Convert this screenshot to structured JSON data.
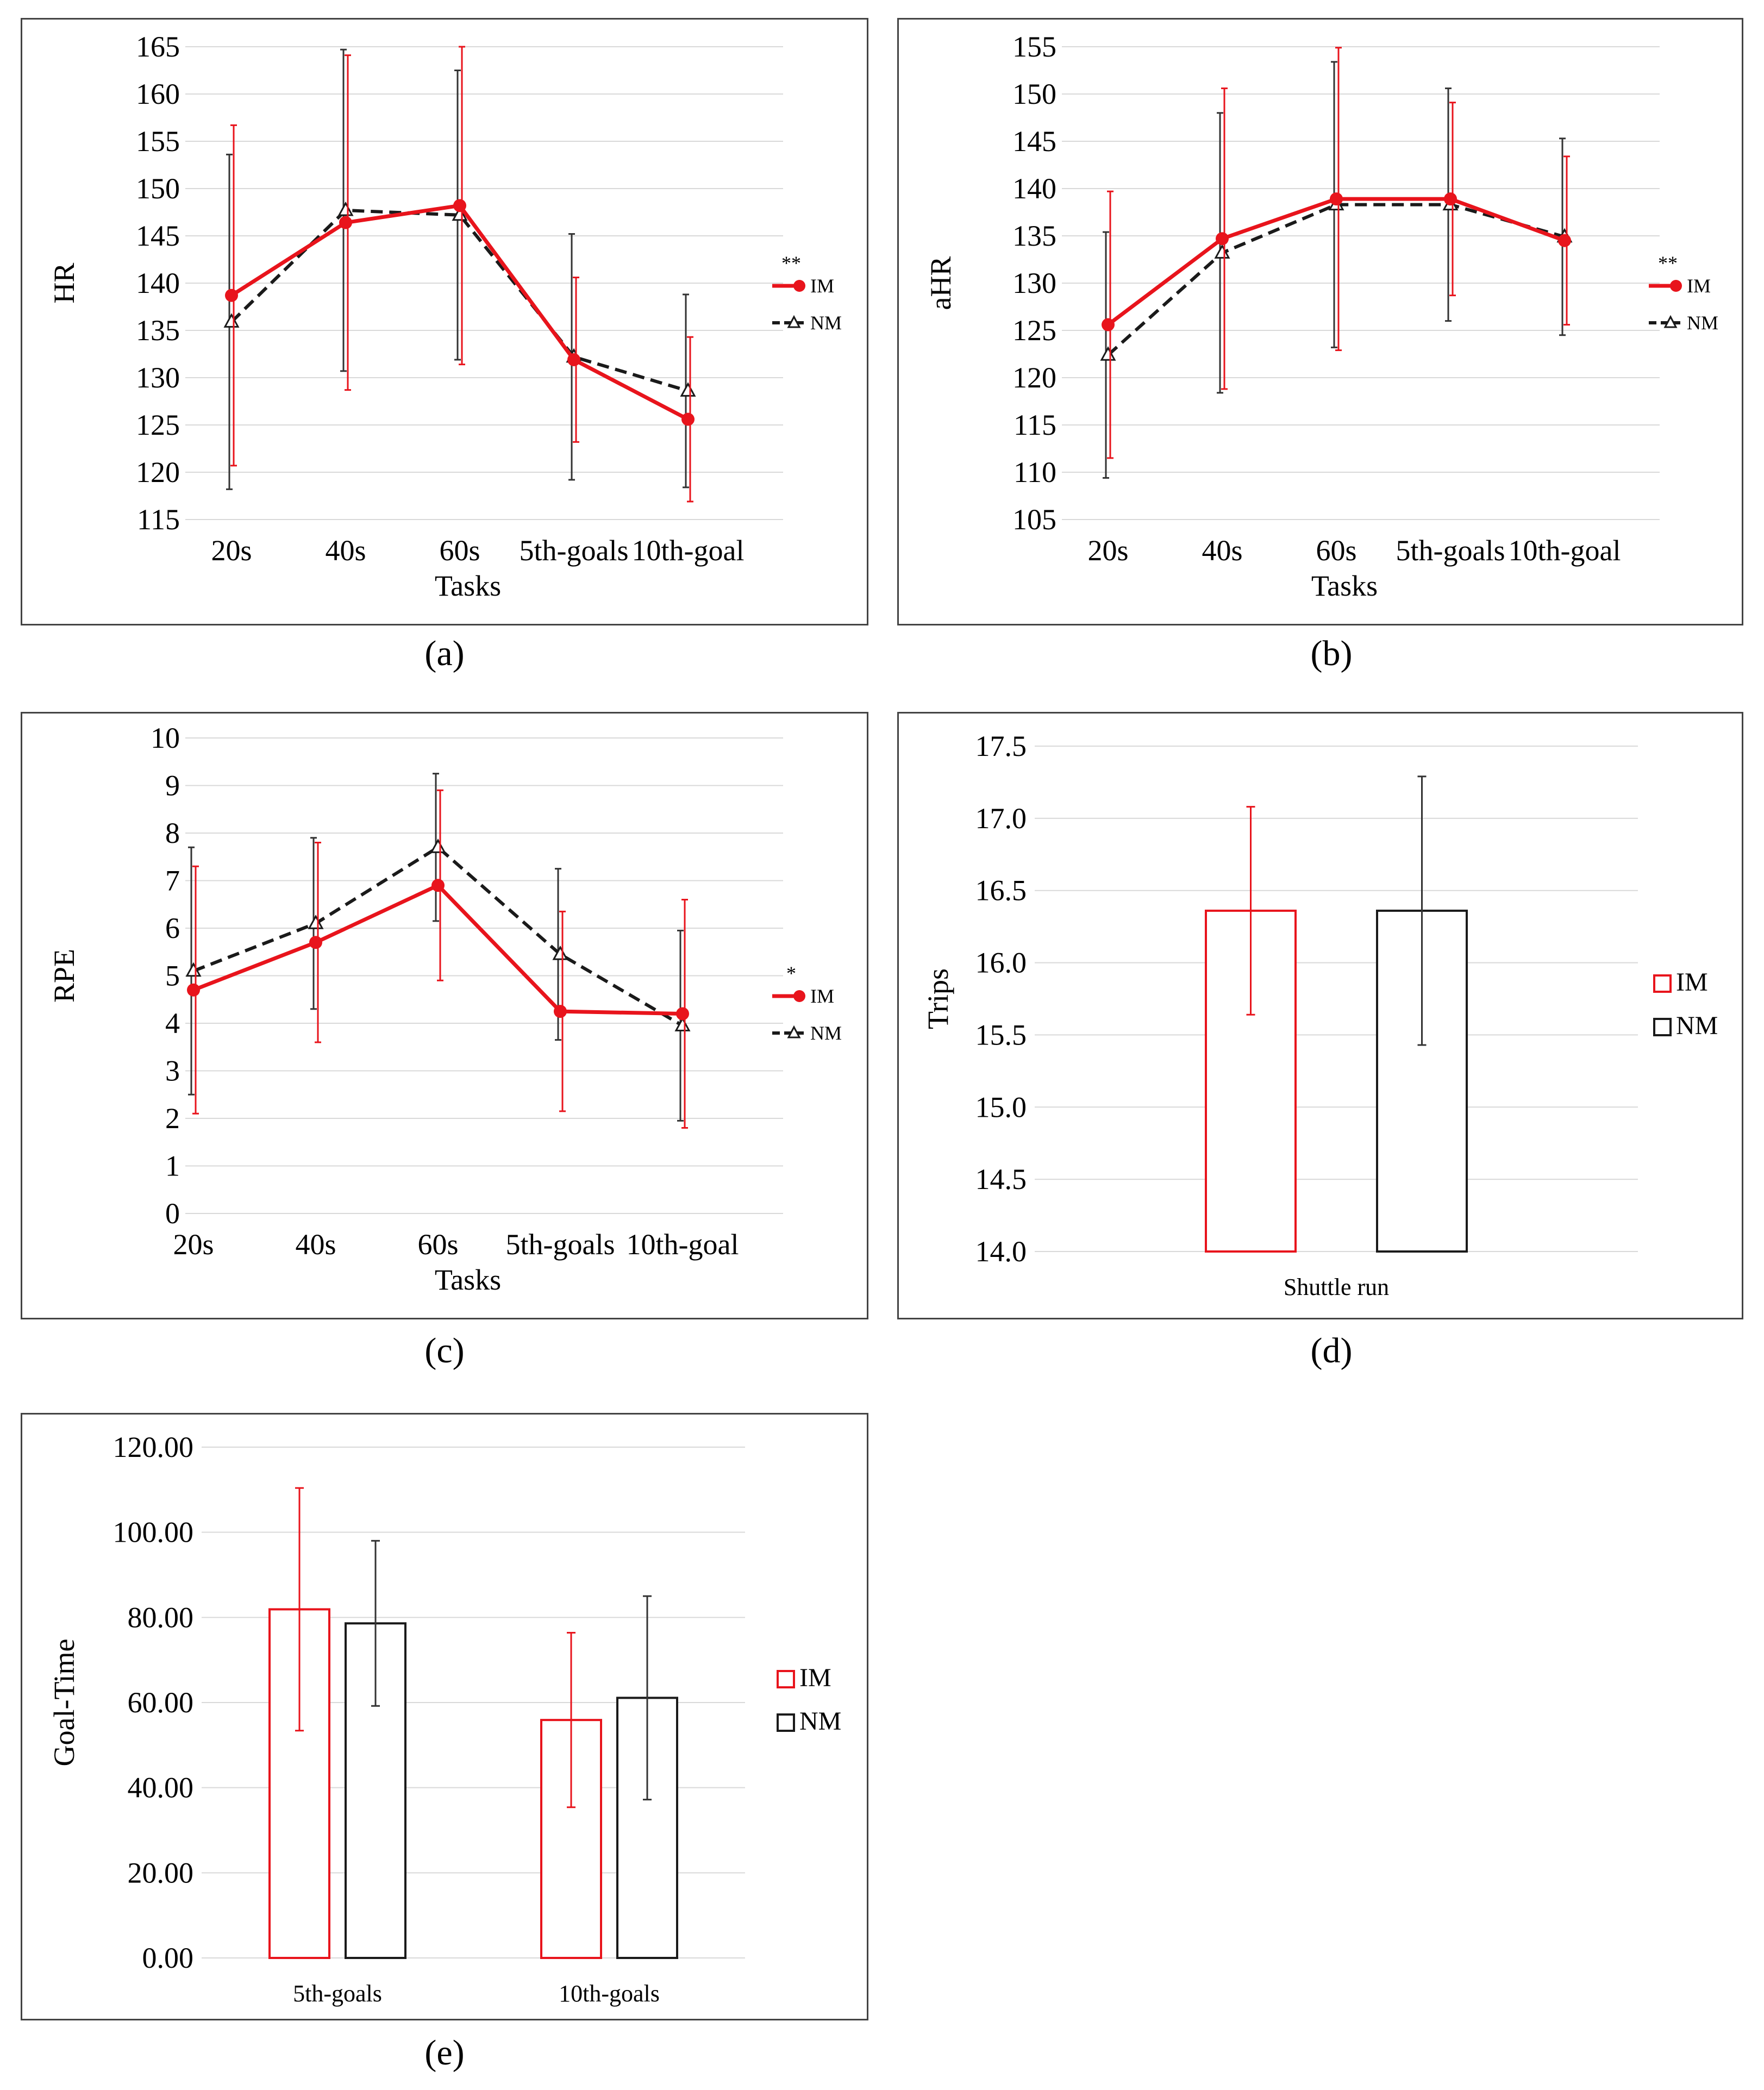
{
  "colors": {
    "im": "#e8141c",
    "nm": "#1a1a1a",
    "grid": "#d9d9d9",
    "errIm": "#e8141c",
    "errNm": "#333333"
  },
  "panels": [
    {
      "id": "a",
      "caption": "(a)",
      "chart_data": {
        "type": "line",
        "title": "",
        "xlabel": "Tasks",
        "ylabel": "HR",
        "categories": [
          "20s",
          "40s",
          "60s",
          "5th-goals",
          "10th-goal"
        ],
        "ylim": [
          115,
          165
        ],
        "ystep": 5,
        "tickDecimals": 0,
        "significance": "**",
        "series": [
          {
            "name": "IM",
            "values": [
              138.7,
              146.4,
              148.2,
              131.9,
              125.6
            ],
            "errors": [
              18.0,
              17.7,
              16.8,
              8.7,
              8.7
            ]
          },
          {
            "name": "NM",
            "values": [
              135.9,
              147.7,
              147.2,
              132.2,
              128.6
            ],
            "errors": [
              17.7,
              17.0,
              15.3,
              13.0,
              10.2
            ]
          }
        ]
      }
    },
    {
      "id": "b",
      "caption": "(b)",
      "chart_data": {
        "type": "line",
        "title": "",
        "xlabel": "Tasks",
        "ylabel": "aHR",
        "categories": [
          "20s",
          "40s",
          "60s",
          "5th-goals",
          "10th-goal"
        ],
        "ylim": [
          105,
          155
        ],
        "ystep": 5,
        "tickDecimals": 0,
        "significance": "**",
        "series": [
          {
            "name": "IM",
            "values": [
              125.6,
              134.7,
              138.9,
              138.9,
              134.5
            ],
            "errors": [
              14.1,
              15.9,
              16.0,
              10.2,
              8.9
            ]
          },
          {
            "name": "NM",
            "values": [
              122.4,
              133.2,
              138.3,
              138.3,
              134.9
            ],
            "errors": [
              13.0,
              14.8,
              15.1,
              12.3,
              10.4
            ]
          }
        ]
      }
    },
    {
      "id": "c",
      "caption": "(c)",
      "chart_data": {
        "type": "line",
        "title": "",
        "xlabel": "Tasks",
        "ylabel": "RPE",
        "categories": [
          "20s",
          "40s",
          "60s",
          "5th-goals",
          "10th-goal"
        ],
        "ylim": [
          0,
          10
        ],
        "ystep": 1,
        "tickDecimals": 0,
        "significance": "*",
        "series": [
          {
            "name": "IM",
            "values": [
              4.7,
              5.7,
              6.9,
              4.25,
              4.2
            ],
            "errors": [
              2.6,
              2.1,
              2.0,
              2.1,
              2.4
            ]
          },
          {
            "name": "NM",
            "values": [
              5.1,
              6.1,
              7.7,
              5.45,
              3.95
            ],
            "errors": [
              2.6,
              1.8,
              1.55,
              1.8,
              2.0
            ]
          }
        ]
      }
    },
    {
      "id": "d",
      "caption": "(d)",
      "chart_data": {
        "type": "bar",
        "title": "",
        "xlabel": "",
        "ylabel": "Trips",
        "categories": [
          "Shuttle run"
        ],
        "ylim": [
          14.0,
          17.5
        ],
        "ystep": 0.5,
        "tickDecimals": 1,
        "series": [
          {
            "name": "IM",
            "values": [
              16.36
            ],
            "errors": [
              0.72
            ]
          },
          {
            "name": "NM",
            "values": [
              16.36
            ],
            "errors": [
              0.93
            ]
          }
        ]
      }
    },
    {
      "id": "e",
      "caption": "(e)",
      "chart_data": {
        "type": "bar",
        "title": "",
        "xlabel": "",
        "ylabel": "Goal-Time",
        "categories": [
          "5th-goals",
          "10th-goals"
        ],
        "ylim": [
          0,
          120
        ],
        "ystep": 20,
        "tickDecimals": 2,
        "series": [
          {
            "name": "IM",
            "values": [
              81.9,
              55.9
            ],
            "errors": [
              28.5,
              20.5
            ]
          },
          {
            "name": "NM",
            "values": [
              78.6,
              61.1
            ],
            "errors": [
              19.4,
              23.9
            ]
          }
        ]
      }
    }
  ]
}
